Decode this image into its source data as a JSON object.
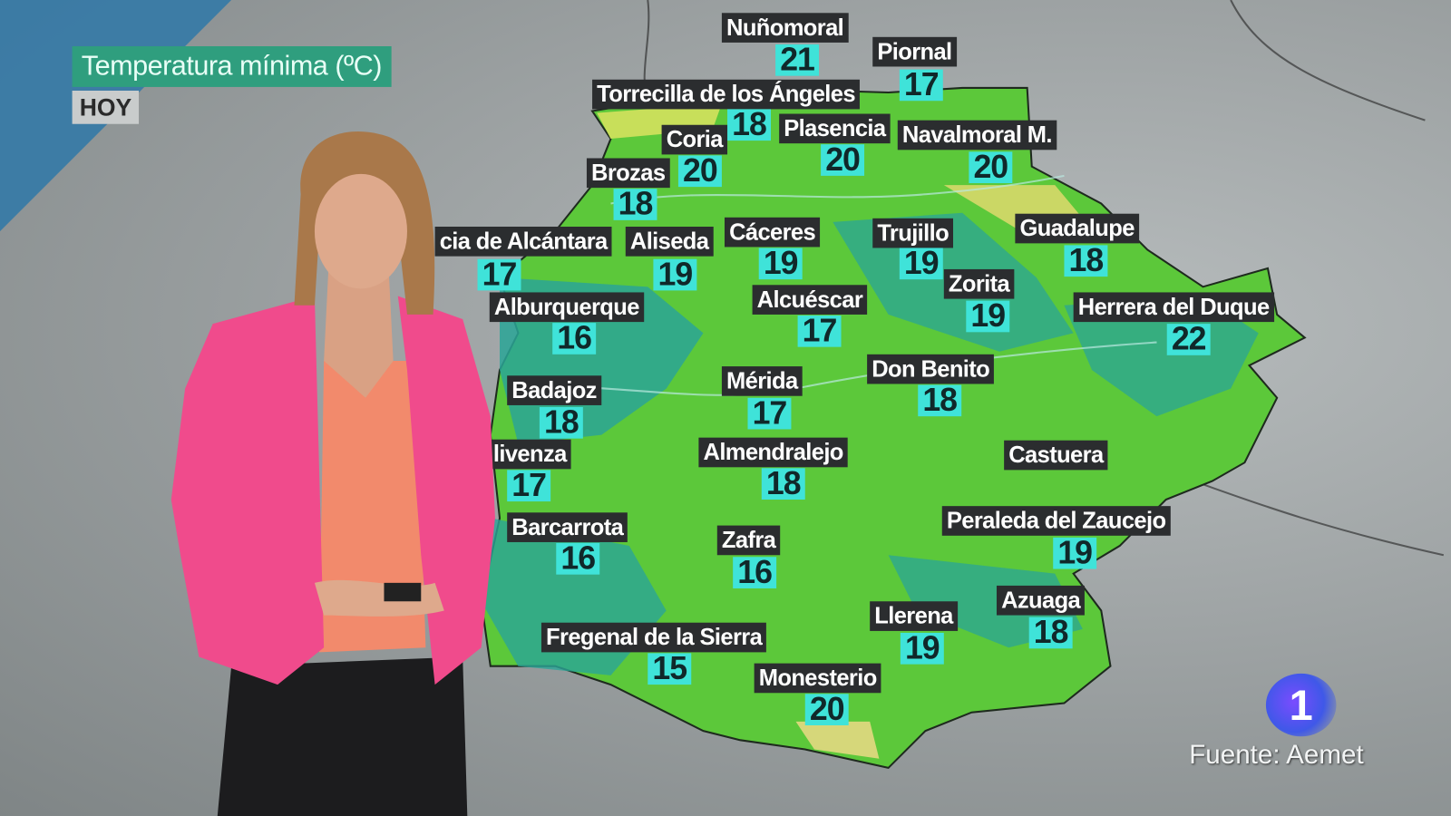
{
  "header": {
    "title": "Temperatura mínima (ºC)",
    "day": "HOY"
  },
  "colors": {
    "title_bg": "#2f9e7e",
    "label_bg": "#2b2d2f",
    "value_bg": "#3fe3d9",
    "region_green": "#5cc83a",
    "region_teal": "#2aa597",
    "jacket": "#f04b8c"
  },
  "cities": [
    {
      "name": "Nuñomoral",
      "min_temp": "21"
    },
    {
      "name": "Piornal",
      "min_temp": "17"
    },
    {
      "name": "Torrecilla de los Ángeles",
      "min_temp": "18"
    },
    {
      "name": "Coria",
      "min_temp": "20"
    },
    {
      "name": "Plasencia",
      "min_temp": "20"
    },
    {
      "name": "Navalmoral M.",
      "min_temp": "20"
    },
    {
      "name": "Brozas",
      "min_temp": "18"
    },
    {
      "name": "cia de Alcántara",
      "min_temp": "17"
    },
    {
      "name": "Aliseda",
      "min_temp": "19"
    },
    {
      "name": "Cáceres",
      "min_temp": "19"
    },
    {
      "name": "Trujillo",
      "min_temp": "19"
    },
    {
      "name": "Guadalupe",
      "min_temp": "18"
    },
    {
      "name": "Zorita",
      "min_temp": "19"
    },
    {
      "name": "Alburquerque",
      "min_temp": "16"
    },
    {
      "name": "Alcuéscar",
      "min_temp": "17"
    },
    {
      "name": "Herrera del Duque",
      "min_temp": "22"
    },
    {
      "name": "Don Benito",
      "min_temp": "18"
    },
    {
      "name": "Badajoz",
      "min_temp": "18"
    },
    {
      "name": "Mérida",
      "min_temp": "17"
    },
    {
      "name": "livenza",
      "min_temp": "17"
    },
    {
      "name": "Almendralejo",
      "min_temp": "18"
    },
    {
      "name": "Castuera",
      "min_temp": null
    },
    {
      "name": "Peraleda del Zaucejo",
      "min_temp": "19"
    },
    {
      "name": "Barcarrota",
      "min_temp": "16"
    },
    {
      "name": "Zafra",
      "min_temp": "16"
    },
    {
      "name": "Azuaga",
      "min_temp": "18"
    },
    {
      "name": "Llerena",
      "min_temp": "19"
    },
    {
      "name": "Fregenal de la Sierra",
      "min_temp": "15"
    },
    {
      "name": "Monesterio",
      "min_temp": "20"
    }
  ],
  "channel_logo": "1",
  "source": "Fuente: Aemet"
}
